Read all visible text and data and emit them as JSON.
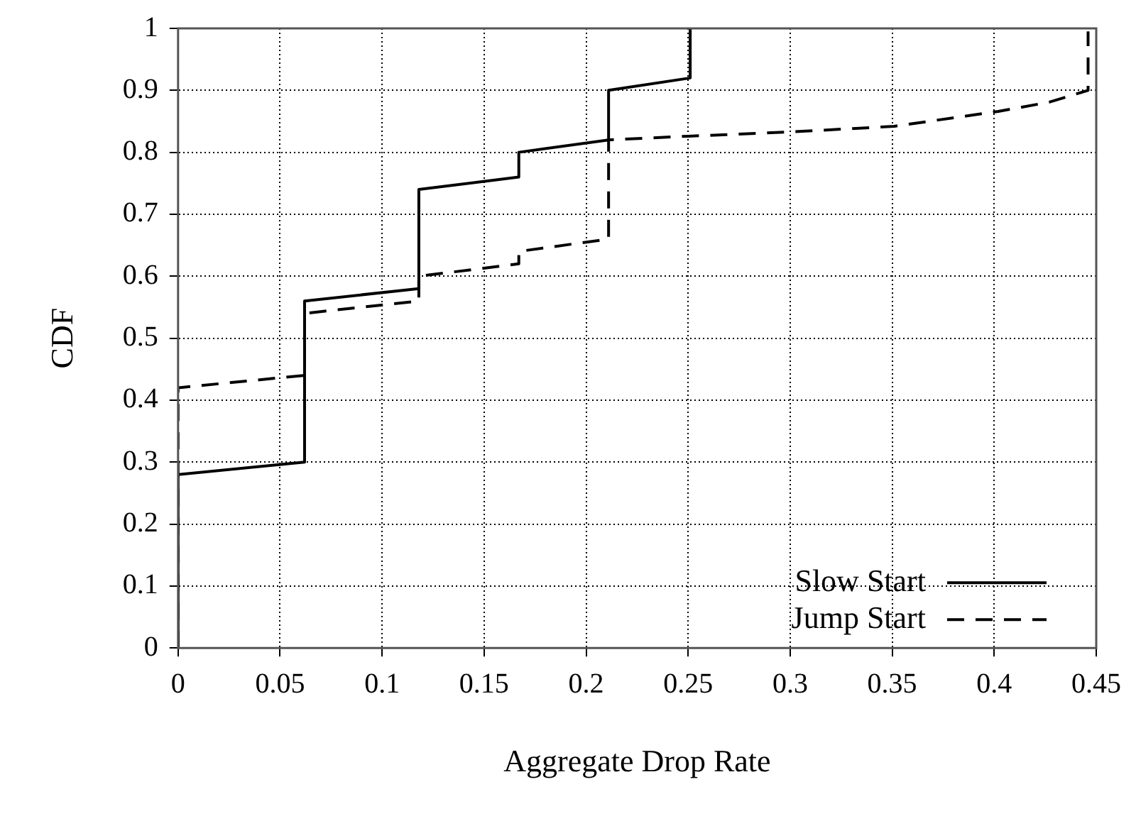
{
  "chart_data": {
    "type": "line",
    "xlabel": "Aggregate Drop Rate",
    "ylabel": "CDF",
    "xlim": [
      0,
      0.45
    ],
    "xticks": [
      0,
      0.05,
      0.1,
      0.15,
      0.2,
      0.25,
      0.3,
      0.35,
      0.4,
      0.45
    ],
    "ylim": [
      0,
      1
    ],
    "yticks": [
      0,
      0.1,
      0.2,
      0.3,
      0.4,
      0.5,
      0.6,
      0.7,
      0.8,
      0.9,
      1
    ],
    "grid": true,
    "legend": "bottom right",
    "marker": "none",
    "series": [
      {
        "name": "Slow Start",
        "color": "#000000",
        "line_style": "solid",
        "x": [
          0,
          0,
          0.062,
          0.062,
          0.118,
          0.118,
          0.167,
          0.167,
          0.211,
          0.211,
          0.251,
          0.251
        ],
        "values": [
          0,
          0.28,
          0.3,
          0.56,
          0.58,
          0.74,
          0.76,
          0.8,
          0.82,
          0.9,
          0.92,
          1
        ]
      },
      {
        "name": "Jump Start",
        "color": "#000000",
        "line_style": "dashed",
        "x": [
          0,
          0,
          0.062,
          0.062,
          0.118,
          0.118,
          0.167,
          0.167,
          0.211,
          0.211,
          0.25,
          0.301,
          0.351,
          0.402,
          0.427,
          0.446,
          0.446
        ],
        "values": [
          0,
          0.42,
          0.44,
          0.54,
          0.56,
          0.6,
          0.62,
          0.64,
          0.66,
          0.82,
          0.826,
          0.833,
          0.842,
          0.866,
          0.881,
          0.9,
          0.995
        ]
      }
    ]
  }
}
